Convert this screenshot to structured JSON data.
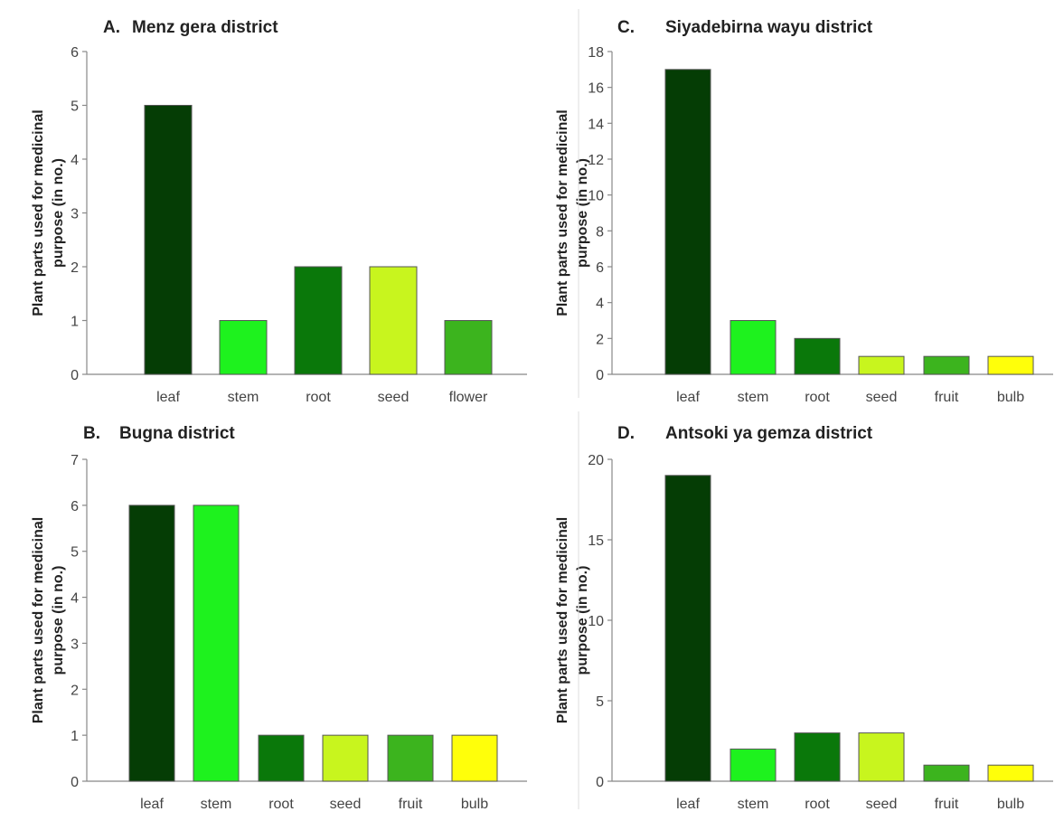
{
  "chart_data": [
    {
      "type": "bar",
      "panel_letter": "A.",
      "title": "Menz gera district",
      "ylabel_line1": "Plant parts used for medicinal",
      "ylabel_line2": "purpose (in no.)",
      "categories": [
        "leaf",
        "stem",
        "root",
        "seed",
        "flower"
      ],
      "values": [
        5,
        1,
        2,
        2,
        1
      ],
      "colors": [
        "#053d05",
        "#1ef21e",
        "#0a780a",
        "#c8f51e",
        "#3cb41e"
      ],
      "ylim": [
        0,
        6
      ],
      "yticks": [
        0,
        1,
        2,
        3,
        4,
        5,
        6
      ]
    },
    {
      "type": "bar",
      "panel_letter": "B.",
      "title": "Bugna district",
      "ylabel_line1": "Plant parts used for medicinal",
      "ylabel_line2": "purpose (in no.)",
      "categories": [
        "leaf",
        "stem",
        "root",
        "seed",
        "fruit",
        "bulb"
      ],
      "values": [
        6,
        6,
        1,
        1,
        1,
        1
      ],
      "colors": [
        "#053d05",
        "#1ef21e",
        "#0a780a",
        "#c8f51e",
        "#3cb41e",
        "#ffff0a"
      ],
      "ylim": [
        0,
        7
      ],
      "yticks": [
        0,
        1,
        2,
        3,
        4,
        5,
        6,
        7
      ]
    },
    {
      "type": "bar",
      "panel_letter": "C.",
      "title": "Siyadebirna wayu district",
      "ylabel_line1": "Plant parts used for medicinal",
      "ylabel_line2": "purpose (in no.)",
      "categories": [
        "leaf",
        "stem",
        "root",
        "seed",
        "fruit",
        "bulb"
      ],
      "values": [
        17,
        3,
        2,
        1,
        1,
        1
      ],
      "colors": [
        "#053d05",
        "#1ef21e",
        "#0a780a",
        "#c8f51e",
        "#3cb41e",
        "#ffff0a"
      ],
      "ylim": [
        0,
        18
      ],
      "yticks": [
        0,
        2,
        4,
        6,
        8,
        10,
        12,
        14,
        16,
        18
      ]
    },
    {
      "type": "bar",
      "panel_letter": "D.",
      "title": "Antsoki ya gemza  district",
      "ylabel_line1": "Plant parts used for medicinal",
      "ylabel_line2": "purpose (in no.)",
      "categories": [
        "leaf",
        "stem",
        "root",
        "seed",
        "fruit",
        "bulb"
      ],
      "values": [
        19,
        2,
        3,
        3,
        1,
        1
      ],
      "colors": [
        "#053d05",
        "#1ef21e",
        "#0a780a",
        "#c8f51e",
        "#3cb41e",
        "#ffff0a"
      ],
      "ylim": [
        0,
        20
      ],
      "yticks": [
        0,
        5,
        10,
        15,
        20
      ]
    }
  ]
}
